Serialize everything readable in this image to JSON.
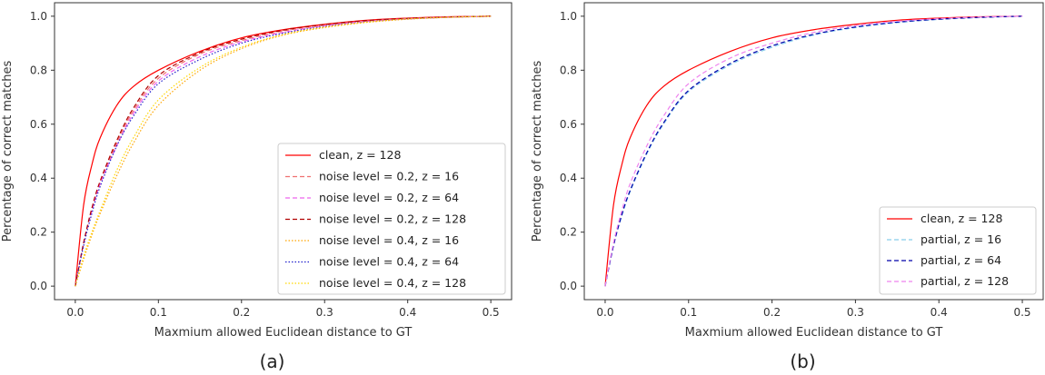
{
  "chart_data": [
    {
      "type": "line",
      "panel_label": "(a)",
      "xlabel": "Maxmium allowed Euclidean distance to GT",
      "ylabel": "Percentage of correct matches",
      "xlim": [
        0,
        0.5
      ],
      "ylim": [
        0,
        1.0
      ],
      "xticks": [
        "0.0",
        "0.1",
        "0.2",
        "0.3",
        "0.4",
        "0.5"
      ],
      "yticks": [
        "0.0",
        "0.2",
        "0.4",
        "0.6",
        "0.8",
        "1.0"
      ],
      "legend_position": "lower-right",
      "x": [
        0.0,
        0.01,
        0.02,
        0.03,
        0.05,
        0.07,
        0.1,
        0.15,
        0.2,
        0.25,
        0.3,
        0.35,
        0.4,
        0.45,
        0.5
      ],
      "series": [
        {
          "name": "clean, z = 128",
          "color": "#ff0000",
          "dash": "solid",
          "values": [
            0.0,
            0.3,
            0.45,
            0.55,
            0.67,
            0.74,
            0.8,
            0.87,
            0.92,
            0.95,
            0.97,
            0.985,
            0.993,
            0.998,
            1.0
          ]
        },
        {
          "name": "noise level = 0.2, z = 16",
          "color": "#f07070",
          "dash": "dashed",
          "values": [
            0.0,
            0.16,
            0.28,
            0.38,
            0.53,
            0.65,
            0.77,
            0.86,
            0.91,
            0.945,
            0.967,
            0.982,
            0.991,
            0.997,
            1.0
          ]
        },
        {
          "name": "noise level = 0.2, z = 64",
          "color": "#ee66ee",
          "dash": "dashed",
          "values": [
            0.0,
            0.16,
            0.28,
            0.38,
            0.52,
            0.64,
            0.76,
            0.85,
            0.905,
            0.94,
            0.964,
            0.98,
            0.99,
            0.996,
            1.0
          ]
        },
        {
          "name": "noise level = 0.2, z = 128",
          "color": "#b00000",
          "dash": "dashed",
          "values": [
            0.0,
            0.16,
            0.29,
            0.39,
            0.54,
            0.66,
            0.78,
            0.865,
            0.915,
            0.948,
            0.969,
            0.984,
            0.992,
            0.997,
            1.0
          ]
        },
        {
          "name": "noise level = 0.4, z = 16",
          "color": "#ffa500",
          "dash": "dotted",
          "values": [
            0.0,
            0.1,
            0.19,
            0.27,
            0.41,
            0.53,
            0.67,
            0.8,
            0.88,
            0.93,
            0.958,
            0.977,
            0.989,
            0.996,
            1.0
          ]
        },
        {
          "name": "noise level = 0.4, z = 64",
          "color": "#2222cc",
          "dash": "dotted",
          "values": [
            0.0,
            0.15,
            0.27,
            0.37,
            0.52,
            0.63,
            0.75,
            0.84,
            0.9,
            0.937,
            0.962,
            0.979,
            0.99,
            0.996,
            1.0
          ]
        },
        {
          "name": "noise level = 0.4, z = 128",
          "color": "#ffd700",
          "dash": "dotted",
          "values": [
            0.0,
            0.11,
            0.2,
            0.28,
            0.43,
            0.55,
            0.69,
            0.81,
            0.885,
            0.932,
            0.96,
            0.978,
            0.99,
            0.996,
            1.0
          ]
        }
      ]
    },
    {
      "type": "line",
      "panel_label": "(b)",
      "xlabel": "Maxmium allowed Euclidean distance to GT",
      "ylabel": "Percentage of correct matches",
      "xlim": [
        0,
        0.5
      ],
      "ylim": [
        0,
        1.0
      ],
      "xticks": [
        "0.0",
        "0.1",
        "0.2",
        "0.3",
        "0.4",
        "0.5"
      ],
      "yticks": [
        "0.0",
        "0.2",
        "0.4",
        "0.6",
        "0.8",
        "1.0"
      ],
      "legend_position": "lower-right",
      "x": [
        0.0,
        0.01,
        0.02,
        0.03,
        0.05,
        0.07,
        0.1,
        0.15,
        0.2,
        0.25,
        0.3,
        0.35,
        0.4,
        0.45,
        0.5
      ],
      "series": [
        {
          "name": "clean, z = 128",
          "color": "#ff0000",
          "dash": "solid",
          "values": [
            0.0,
            0.3,
            0.45,
            0.55,
            0.67,
            0.74,
            0.8,
            0.87,
            0.92,
            0.95,
            0.97,
            0.985,
            0.993,
            0.998,
            1.0
          ]
        },
        {
          "name": "partial, z = 16",
          "color": "#87ceeb",
          "dash": "dashed",
          "values": [
            0.0,
            0.15,
            0.26,
            0.35,
            0.49,
            0.6,
            0.72,
            0.82,
            0.885,
            0.93,
            0.958,
            0.976,
            0.988,
            0.995,
            1.0
          ]
        },
        {
          "name": "partial, z = 64",
          "color": "#0000aa",
          "dash": "dashed",
          "values": [
            0.0,
            0.15,
            0.265,
            0.355,
            0.495,
            0.605,
            0.725,
            0.825,
            0.89,
            0.933,
            0.96,
            0.978,
            0.989,
            0.996,
            1.0
          ]
        },
        {
          "name": "partial, z = 128",
          "color": "#ee82ee",
          "dash": "dashed",
          "values": [
            0.0,
            0.16,
            0.28,
            0.38,
            0.52,
            0.63,
            0.75,
            0.845,
            0.9,
            0.94,
            0.965,
            0.981,
            0.991,
            0.997,
            1.0
          ]
        }
      ]
    }
  ]
}
